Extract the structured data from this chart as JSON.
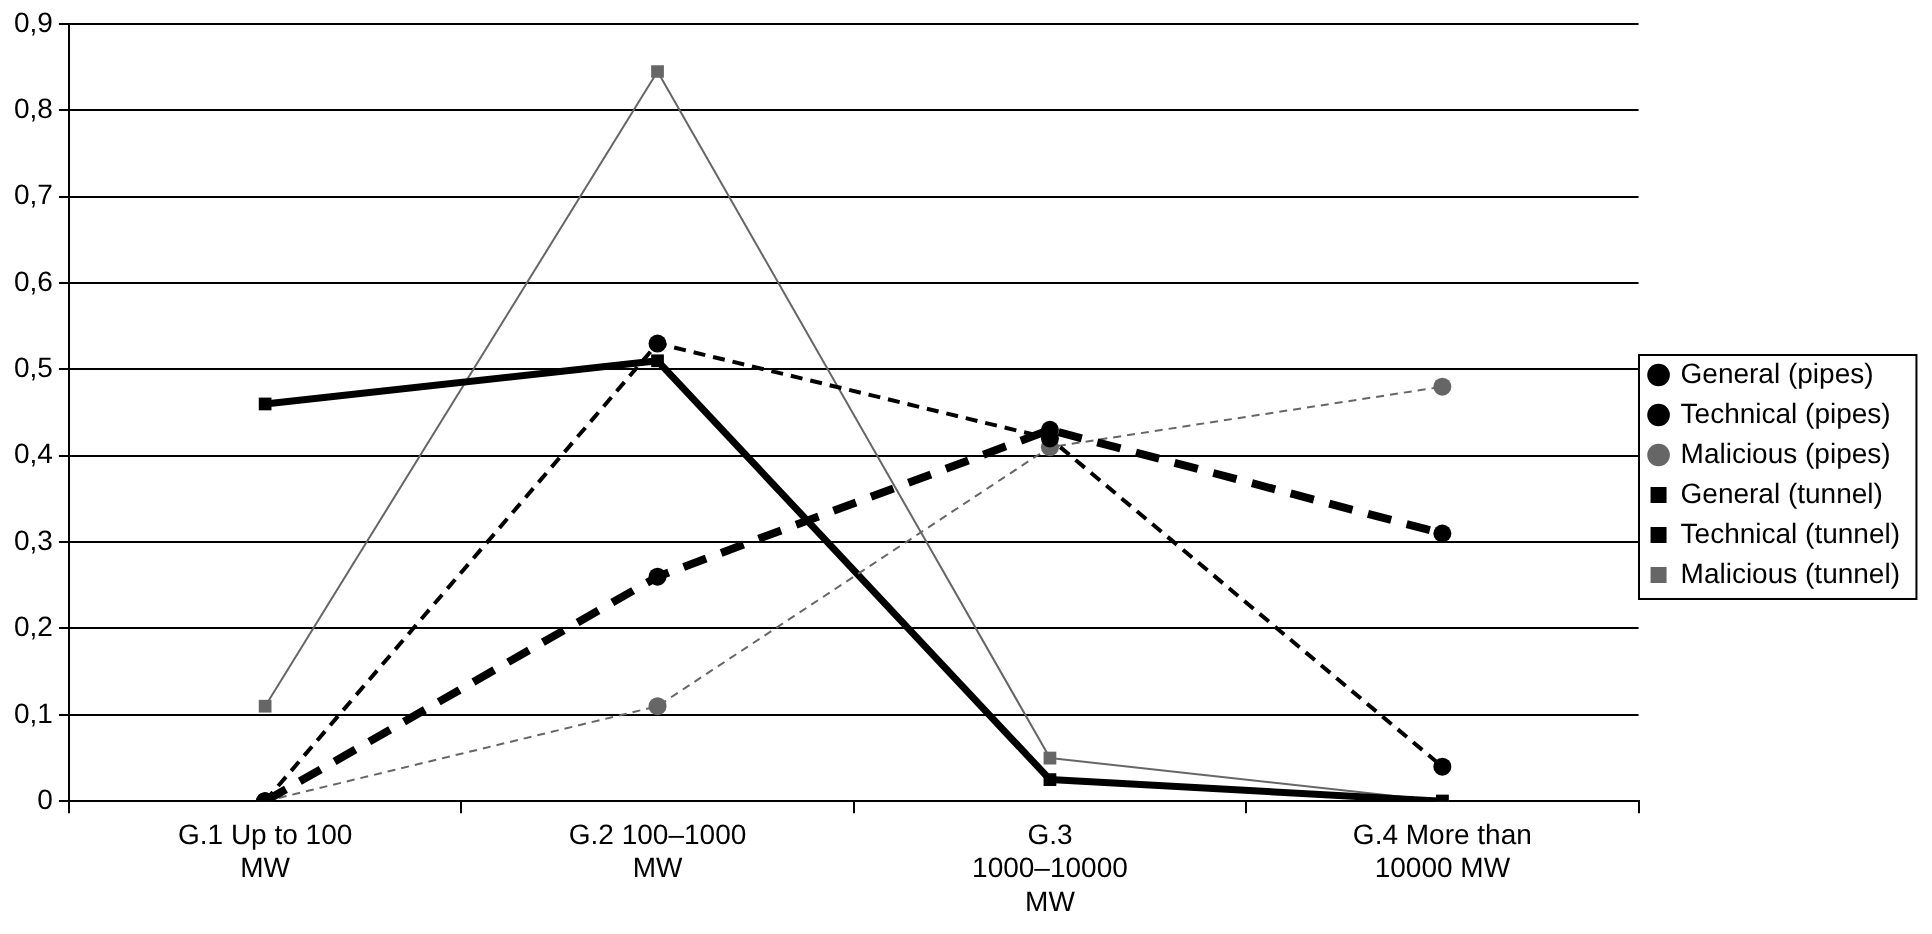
{
  "chart_data": {
    "type": "line",
    "categories": [
      "G.1 Up to 100 MW",
      "G.2 100–1000 MW",
      "G.3 1000–10000 MW",
      "G.4 More than 10000 MW"
    ],
    "ylim": [
      0,
      0.9
    ],
    "yticks": [
      0,
      {
        "value": 0.1,
        "label": "0,1"
      },
      {
        "value": 0.2,
        "label": "0,2"
      },
      {
        "value": 0.3,
        "label": "0,3"
      },
      {
        "value": 0.4,
        "label": "0,4"
      },
      {
        "value": 0.5,
        "label": "0,5"
      },
      {
        "value": 0.6,
        "label": "0,6"
      },
      {
        "value": 0.7,
        "label": "0,7"
      },
      {
        "value": 0.8,
        "label": "0,8"
      },
      {
        "value": 0.9,
        "label": "0,9"
      }
    ],
    "grid": "y",
    "legend": "right",
    "series": [
      {
        "name": "General (pipes)",
        "color": "#000000",
        "values": [
          0,
          0.26,
          0.43,
          0.31
        ],
        "marker": "circle",
        "line_style": "dashed"
      },
      {
        "name": "Technical (pipes)",
        "color": "#000000",
        "values": [
          0,
          0.53,
          0.42,
          0.04
        ],
        "marker": "circle",
        "line_style": "dashed"
      },
      {
        "name": "Malicious (pipes)",
        "color": "#666666",
        "values": [
          0,
          0.11,
          0.41,
          0.48
        ],
        "marker": "circle",
        "line_style": "dashed"
      },
      {
        "name": "General (tunnel)",
        "color": "#000000",
        "values": [
          0.46,
          0.51,
          0.025,
          0
        ],
        "marker": "square",
        "line_style": "solid"
      },
      {
        "name": "Technical (tunnel)",
        "color": "#000000",
        "values": [
          null,
          null,
          null,
          null
        ],
        "marker": "square",
        "line_style": "solid"
      },
      {
        "name": "Malicious (tunnel)",
        "color": "#666666",
        "values": [
          0.11,
          0.845,
          0.05,
          0
        ],
        "marker": "square",
        "line_style": "solid"
      }
    ]
  }
}
